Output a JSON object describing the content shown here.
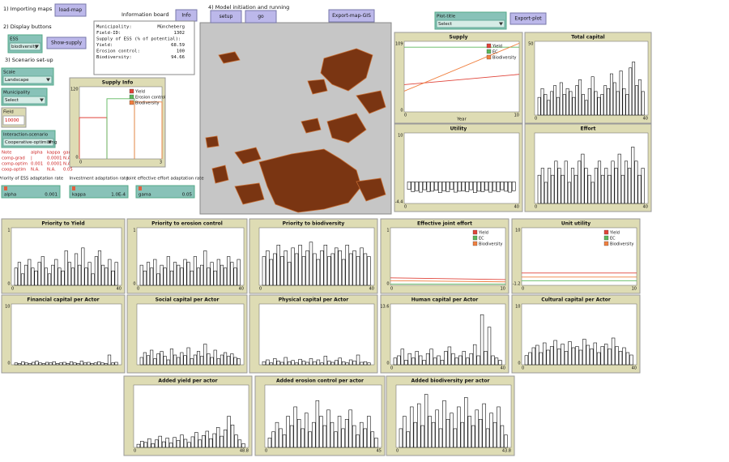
{
  "sections": [
    "1) Importing maps",
    "2) Display buttons",
    "3) Scenario set-up",
    "4) Model initiation and running"
  ],
  "info_board": {
    "title": "Information board",
    "lines": [
      [
        "Municipality:",
        "Müncheberg"
      ],
      [
        "Field-ID:",
        "1302"
      ],
      [
        "Supply of ESS (% of potential):",
        ""
      ],
      [
        "Yield:",
        "68.59"
      ],
      [
        "Erosion control:",
        "100"
      ],
      [
        "Biodiversity:",
        "94.66"
      ]
    ]
  },
  "buttons": [
    "load-map",
    "Info",
    "Show-supply",
    "setup",
    "go",
    "Export-map-GIS",
    "Export-plot"
  ],
  "choosers": [
    {
      "label": "ESS",
      "value": "biodiversity"
    },
    {
      "label": "Scale",
      "value": "Landscape"
    },
    {
      "label": "Municipality",
      "value": "Select"
    },
    {
      "label": "Interaction-scenario",
      "value": "Cooperative-optimizing"
    },
    {
      "label": "Plot-title",
      "value": "Select"
    }
  ],
  "input": {
    "label": "Field",
    "value": "10000"
  },
  "note_table": {
    "header": [
      "Note",
      "alpha",
      "kappa",
      "gamma"
    ],
    "rows": [
      [
        "comp-grad",
        "|",
        "0.0001",
        "N.A."
      ],
      [
        "comp-optim",
        "0.001",
        "0.0001",
        "N.A."
      ],
      [
        "coop-optim",
        "N.A.",
        "N.A.",
        "0.05"
      ]
    ]
  },
  "sliders": [
    {
      "caption": "Priority of ESS adaptation rate",
      "name": "alpha",
      "value": "0.001"
    },
    {
      "caption": "Investment adaptation rate",
      "name": "kappa",
      "value": "1.0E-4"
    },
    {
      "caption": "Joint effective effort adaptation rate",
      "name": "gama",
      "value": "0.05"
    }
  ],
  "plots": [
    {
      "title": "Supply Info",
      "type": "step",
      "xlim": [
        0,
        3
      ],
      "ylim": [
        0,
        120
      ],
      "xticks": [
        0,
        3
      ],
      "yticks": [
        0,
        120
      ],
      "legend": true,
      "series": [
        {
          "name": "Yield",
          "color": "#e0443a",
          "values": [
            68.59
          ]
        },
        {
          "name": "Erosion control",
          "color": "#5cb85c",
          "values": [
            100
          ]
        },
        {
          "name": "Biodiversity",
          "color": "#f08040",
          "values": [
            94.66
          ]
        }
      ]
    },
    {
      "title": "Supply",
      "type": "line",
      "xlim": [
        0,
        10
      ],
      "ylim": [
        0,
        109
      ],
      "xticks": [
        0,
        10
      ],
      "yticks": [
        0,
        109
      ],
      "xlabel": "Year",
      "legend": true,
      "series": [
        {
          "name": "Yield",
          "color": "#e0443a",
          "x": [
            0,
            10
          ],
          "values": [
            42,
            58
          ]
        },
        {
          "name": "EC",
          "color": "#5cb85c",
          "x": [
            0,
            10
          ],
          "values": [
            100,
            100
          ]
        },
        {
          "name": "Biodiversity",
          "color": "#f08040",
          "x": [
            0,
            10
          ],
          "values": [
            32,
            106
          ]
        }
      ]
    },
    {
      "title": "Total capital",
      "type": "histogram",
      "xlim": [
        0,
        40
      ],
      "ylim": [
        0,
        50
      ],
      "xticks": [
        0,
        40
      ],
      "yticks": [
        50
      ],
      "values": [
        12,
        18,
        14,
        10,
        16,
        20,
        12,
        22,
        14,
        18,
        16,
        12,
        20,
        24,
        14,
        10,
        18,
        26,
        16,
        12,
        14,
        20,
        18,
        28,
        22,
        16,
        30,
        18,
        14,
        32,
        36,
        20,
        24,
        16
      ]
    },
    {
      "title": "Utility",
      "type": "histogram",
      "xlim": [
        0,
        40
      ],
      "ylim": [
        -4.4,
        10
      ],
      "xticks": [
        0,
        40
      ],
      "yticks": [
        -4.4,
        10
      ],
      "values": [
        -1.5,
        -2,
        -1.8,
        -2.1,
        -1.6,
        -2,
        -1.9,
        -1.7,
        -2.2,
        -1.8,
        -2,
        -1.5,
        -2.1,
        -1.9,
        -1.8,
        -2,
        -1.6,
        -2.2,
        -1.9,
        -2,
        -1.7,
        -2.1,
        -1.8,
        -2,
        -1.6,
        -1.9,
        -2.1,
        -1.8
      ]
    },
    {
      "title": "Effort",
      "type": "histogram",
      "xlim": [
        0,
        40
      ],
      "ylim": [
        0,
        10
      ],
      "xticks": [
        0,
        40
      ],
      "values": [
        4,
        5,
        3,
        5,
        4,
        6,
        5,
        4,
        6,
        3,
        5,
        4,
        6,
        7,
        5,
        4,
        3,
        5,
        6,
        4,
        5,
        4,
        6,
        5,
        7,
        4,
        6,
        5,
        8,
        6,
        4,
        5
      ]
    },
    {
      "title": "Priority to Yield",
      "type": "histogram",
      "xlim": [
        0,
        40
      ],
      "ylim": [
        0,
        1
      ],
      "xticks": [
        0,
        40
      ],
      "yticks": [
        0,
        1
      ],
      "values": [
        0.3,
        0.4,
        0.2,
        0.35,
        0.45,
        0.3,
        0.25,
        0.4,
        0.5,
        0.3,
        0.2,
        0.35,
        0.45,
        0.3,
        0.25,
        0.6,
        0.4,
        0.3,
        0.55,
        0.35,
        0.65,
        0.3,
        0.4,
        0.2,
        0.5,
        0.6,
        0.35,
        0.3,
        0.45,
        0.25,
        0.4
      ]
    },
    {
      "title": "Priority to erosion control",
      "type": "histogram",
      "xlim": [
        0,
        40
      ],
      "ylim": [
        0,
        1
      ],
      "xticks": [
        0,
        40
      ],
      "yticks": [
        0,
        1
      ],
      "values": [
        0.35,
        0.25,
        0.4,
        0.3,
        0.45,
        0.2,
        0.35,
        0.3,
        0.5,
        0.25,
        0.4,
        0.35,
        0.3,
        0.45,
        0.4,
        0.25,
        0.5,
        0.3,
        0.35,
        0.6,
        0.3,
        0.4,
        0.25,
        0.45,
        0.35,
        0.3,
        0.5,
        0.4,
        0.3,
        0.45
      ]
    },
    {
      "title": "Priority to biodiversity",
      "type": "histogram",
      "xlim": [
        0,
        40
      ],
      "ylim": [
        0,
        1
      ],
      "xticks": [
        0,
        40
      ],
      "values": [
        0.5,
        0.6,
        0.45,
        0.55,
        0.7,
        0.5,
        0.6,
        0.4,
        0.65,
        0.55,
        0.7,
        0.5,
        0.6,
        0.75,
        0.55,
        0.45,
        0.6,
        0.7,
        0.5,
        0.55,
        0.65,
        0.6,
        0.45,
        0.7,
        0.55,
        0.6,
        0.5,
        0.65,
        0.55,
        0.5
      ]
    },
    {
      "title": "Effective joint effort",
      "type": "line",
      "xlim": [
        0,
        10
      ],
      "ylim": [
        0,
        1
      ],
      "xticks": [
        0,
        10
      ],
      "yticks": [
        0,
        1
      ],
      "legend": true,
      "series": [
        {
          "name": "Yield",
          "color": "#e0443a",
          "x": [
            0,
            10
          ],
          "values": [
            0.13,
            0.1
          ]
        },
        {
          "name": "EC",
          "color": "#5cb85c",
          "x": [
            0,
            10
          ],
          "values": [
            0.02,
            0.02
          ]
        },
        {
          "name": "Biodiversity",
          "color": "#f08040",
          "x": [
            0,
            10
          ],
          "values": [
            0.08,
            0.06
          ]
        }
      ]
    },
    {
      "title": "Unit utility",
      "type": "line",
      "xlim": [
        0,
        10
      ],
      "ylim": [
        -1.2,
        10
      ],
      "xticks": [
        0,
        10
      ],
      "yticks": [
        -1.2,
        10
      ],
      "legend": true,
      "series": [
        {
          "name": "Yield",
          "color": "#e0443a",
          "x": [
            0,
            10
          ],
          "values": [
            1.2,
            1.2
          ]
        },
        {
          "name": "EC",
          "color": "#5cb85c",
          "x": [
            0,
            10
          ],
          "values": [
            -0.3,
            -0.3
          ]
        },
        {
          "name": "Biodiversity",
          "color": "#f08040",
          "x": [
            0,
            10
          ],
          "values": [
            0.4,
            0.4
          ]
        }
      ]
    },
    {
      "title": "Financial capital per Actor",
      "type": "histogram",
      "xlim": [
        0,
        40
      ],
      "ylim": [
        0,
        10
      ],
      "yticks": [
        0,
        10
      ],
      "values": [
        0.3,
        0.2,
        0.5,
        0.3,
        0.2,
        0.4,
        0.6,
        0.3,
        0.2,
        0.4,
        0.3,
        0.5,
        0.2,
        0.3,
        0.4,
        0.2,
        0.5,
        0.3,
        0.2,
        0.6,
        0.3,
        0.4,
        0.2,
        0.3,
        0.5,
        0.3,
        0.2,
        1.6,
        0.3,
        0.4
      ]
    },
    {
      "title": "Social capital per Actor",
      "type": "histogram",
      "xlim": [
        0,
        40
      ],
      "ylim": [
        0,
        10
      ],
      "values": [
        1.2,
        2,
        1.5,
        2.4,
        1,
        1.8,
        2.2,
        1.4,
        0.8,
        2.6,
        1.6,
        1.2,
        2,
        1.5,
        2.8,
        1,
        1.6,
        2.2,
        1.4,
        3.4,
        1.8,
        1.2,
        2.4,
        1,
        1.6,
        2,
        1.4,
        1.8,
        1.2,
        1
      ]
    },
    {
      "title": "Physical capital per Actor",
      "type": "histogram",
      "xlim": [
        0,
        40
      ],
      "ylim": [
        0,
        10
      ],
      "values": [
        0.5,
        0.8,
        0.3,
        1,
        0.6,
        0.4,
        1.2,
        0.5,
        0.7,
        0.3,
        0.9,
        0.6,
        0.4,
        1,
        0.5,
        0.8,
        0.3,
        1.4,
        0.6,
        0.4,
        0.7,
        1.1,
        0.5,
        0.3,
        0.8,
        0.6,
        1.6,
        0.4,
        0.5,
        0.3
      ]
    },
    {
      "title": "Human capital per Actor",
      "type": "histogram",
      "xlim": [
        0,
        40
      ],
      "ylim": [
        0,
        13.6
      ],
      "xticks": [
        0,
        40
      ],
      "yticks": [
        0,
        13.6
      ],
      "values": [
        1.5,
        2,
        3.5,
        1,
        2.5,
        1.5,
        3,
        2,
        1,
        2.5,
        3.5,
        1.5,
        2,
        1,
        3,
        4,
        2.5,
        1.5,
        2,
        3,
        1.5,
        2.5,
        4.5,
        2,
        11.2,
        3,
        8.4,
        2,
        1.5,
        1
      ]
    },
    {
      "title": "Cultural capital per Actor",
      "type": "histogram",
      "xlim": [
        0,
        40
      ],
      "ylim": [
        0,
        10
      ],
      "xticks": [
        0,
        40
      ],
      "yticks": [
        0,
        10
      ],
      "values": [
        1.5,
        2,
        2.8,
        3.2,
        2,
        3.6,
        2.4,
        3,
        4,
        2.6,
        3.4,
        2.2,
        3.8,
        2.8,
        3,
        2.4,
        4.2,
        3.2,
        2.6,
        3.6,
        2,
        3,
        3.4,
        2.6,
        4.4,
        3,
        2.2,
        2.8,
        2,
        1.6
      ]
    },
    {
      "title": "Added yield per actor",
      "type": "histogram",
      "xlim": [
        0,
        48.8
      ],
      "ylim": [
        0,
        10
      ],
      "xticks": [
        0,
        48.8
      ],
      "values": [
        0.5,
        1,
        0.8,
        1.4,
        0.6,
        1.2,
        1.8,
        0.9,
        1.5,
        0.7,
        1.6,
        1.1,
        2,
        1.3,
        0.8,
        1.7,
        2.4,
        1.2,
        1.9,
        2.6,
        1.4,
        2.2,
        3.2,
        1.8,
        2.8,
        5,
        3.6,
        2,
        1.2,
        0.6
      ]
    },
    {
      "title": "Added erosion control per actor",
      "type": "histogram",
      "xlim": [
        0,
        45
      ],
      "ylim": [
        0,
        10
      ],
      "xticks": [
        0,
        45
      ],
      "values": [
        1.5,
        2.5,
        4,
        3,
        2,
        5,
        3.5,
        6.5,
        4.5,
        3,
        5.5,
        2.5,
        4,
        7.5,
        5,
        3.5,
        6,
        4,
        2.5,
        5,
        3,
        4.5,
        6,
        3.5,
        2,
        4,
        3,
        5,
        2.5,
        1.5
      ]
    },
    {
      "title": "Added biodiversity per actor",
      "type": "histogram",
      "xlim": [
        0,
        43.8
      ],
      "ylim": [
        0,
        10
      ],
      "xticks": [
        0,
        43.8
      ],
      "values": [
        3,
        5,
        2.5,
        6.5,
        4,
        7,
        3.5,
        8.5,
        5,
        4,
        6,
        3,
        7.5,
        4.5,
        5.5,
        3,
        6.5,
        4,
        8,
        5,
        3.5,
        6,
        4.5,
        7,
        3,
        5.5,
        4,
        6.5,
        3.5,
        2
      ]
    }
  ]
}
